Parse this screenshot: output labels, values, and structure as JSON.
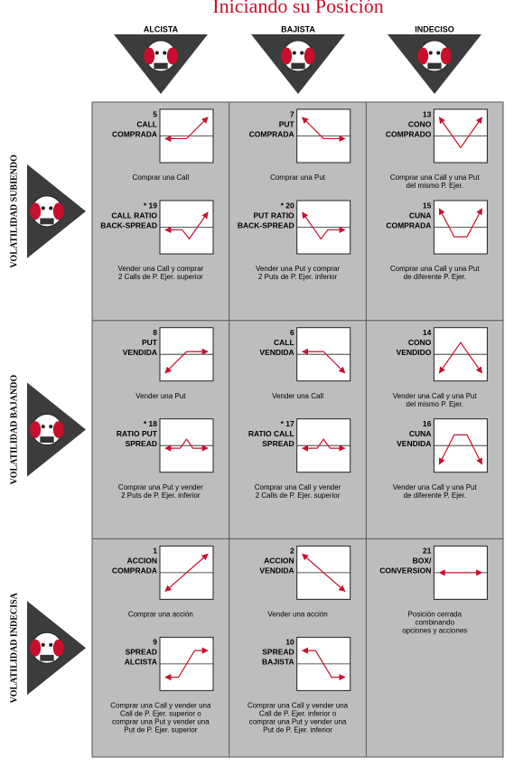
{
  "title": "Iniciando su Posición",
  "columns": [
    "ALCISTA",
    "BAJISTA",
    "INDECISO"
  ],
  "rows": [
    {
      "label": "VOLATILIDAD SUBIENDO",
      "cells": [
        [
          {
            "number": "5",
            "name": [
              "CALL",
              "COMPRADA"
            ],
            "caption": [
              "Comprar una Call"
            ]
          },
          {
            "number": "* 19",
            "name": [
              "CALL RATIO",
              "BACK-SPREAD"
            ],
            "caption": [
              "Vender una Call y comprar",
              "2 Calls de P. Ejer. superior"
            ]
          }
        ],
        [
          {
            "number": "7",
            "name": [
              "PUT",
              "COMPRADA"
            ],
            "caption": [
              "Comprar una Put"
            ]
          },
          {
            "number": "* 20",
            "name": [
              "PUT RATIO",
              "BACK-SPREAD"
            ],
            "caption": [
              "Vender una Put y comprar",
              "2 Puts de P. Ejer. inferior"
            ]
          }
        ],
        [
          {
            "number": "13",
            "name": [
              "CONO",
              "COMPRADO"
            ],
            "caption": [
              "Comprar una Call y una Put",
              "del mismo P. Ejer."
            ]
          },
          {
            "number": "15",
            "name": [
              "CUNA",
              "COMPRADA"
            ],
            "caption": [
              "Comprar una Call y una Put",
              "de diferente P. Ejer."
            ]
          }
        ]
      ]
    },
    {
      "label": "VOLATILIDAD BAJANDO",
      "cells": [
        [
          {
            "number": "8",
            "name": [
              "PUT",
              "VENDIDA"
            ],
            "caption": [
              "Vender una Put"
            ]
          },
          {
            "number": "* 18",
            "name": [
              "RATIO PUT",
              "SPREAD"
            ],
            "caption": [
              "Comprar una Put y vender",
              "2 Puts de P. Ejer. inferior"
            ]
          }
        ],
        [
          {
            "number": "6",
            "name": [
              "CALL",
              "VENDIDA"
            ],
            "caption": [
              "Vender una Call"
            ]
          },
          {
            "number": "* 17",
            "name": [
              "RATIO CALL",
              "SPREAD"
            ],
            "caption": [
              "Comprar una Call y vender",
              "2 Calls de P. Ejer. superior"
            ]
          }
        ],
        [
          {
            "number": "14",
            "name": [
              "CONO",
              "VENDIDO"
            ],
            "caption": [
              "Vender una Call y una Put",
              "del mismo P. Ejer."
            ]
          },
          {
            "number": "16",
            "name": [
              "CUNA",
              "VENDIDA"
            ],
            "caption": [
              "Vender una Call y una Put",
              "de diferente P. Ejer."
            ]
          }
        ]
      ]
    },
    {
      "label": "VOLATILIDAD INDECISA",
      "cells": [
        [
          {
            "number": "1",
            "name": [
              "ACCION",
              "COMPRADA"
            ],
            "caption": [
              "Comprar una acción"
            ]
          },
          {
            "number": "9",
            "name": [
              "SPREAD",
              "ALCISTA"
            ],
            "caption": [
              "Comprar una Call y vender una",
              "Call de P. Ejer. superior o",
              "comprar una Put y vender una",
              "Put de P. Ejer. superior"
            ]
          }
        ],
        [
          {
            "number": "2",
            "name": [
              "ACCION",
              "VENDIDA"
            ],
            "caption": [
              "Vender una acción"
            ]
          },
          {
            "number": "10",
            "name": [
              "SPREAD",
              "BAJISTA"
            ],
            "caption": [
              "Comprar una Call y vender una",
              "Call de P. Ejer. inferior o",
              "comprar una Put y vender una",
              "Put de P. Ejer. inferior"
            ]
          }
        ],
        [
          {
            "number": "21",
            "name": [
              "BOX/",
              "CONVERSION"
            ],
            "caption": [
              "Posición cerrada",
              "combinando",
              "opciones y acciones"
            ]
          }
        ]
      ]
    }
  ]
}
